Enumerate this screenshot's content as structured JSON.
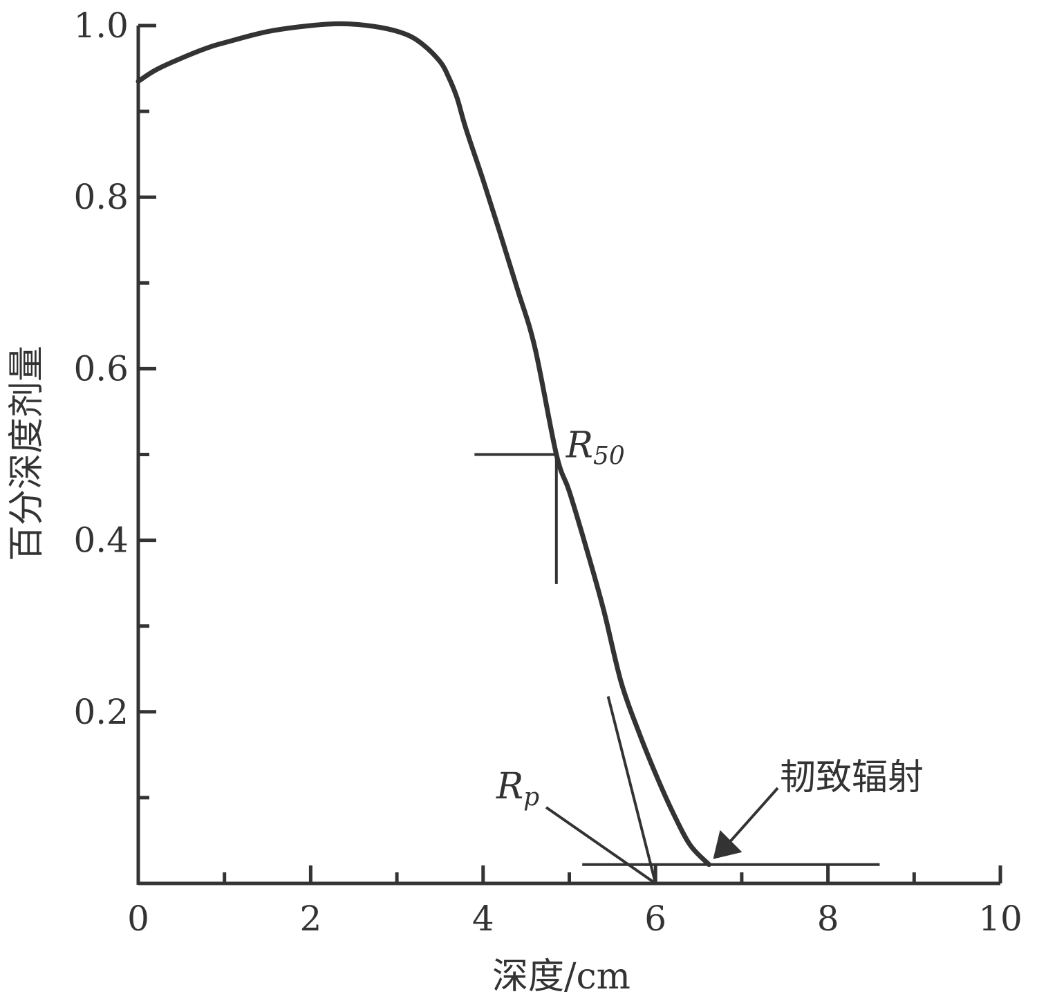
{
  "chart_data": {
    "type": "line",
    "xlabel": "深度/cm",
    "ylabel": "百分深度剂量",
    "xlim": [
      0,
      10
    ],
    "ylim": [
      0,
      1.0
    ],
    "x_ticks": [
      "0",
      "2",
      "4",
      "6",
      "8",
      "10"
    ],
    "y_ticks": [
      "0.2",
      "0.4",
      "0.6",
      "0.8",
      "1.0"
    ],
    "grid": false,
    "series": [
      {
        "x": [
          0,
          0.2,
          0.5,
          0.8,
          1.0,
          1.5,
          2.0,
          2.4,
          2.8,
          3.1,
          3.3,
          3.5,
          3.6,
          3.7,
          3.8,
          4.0,
          4.2,
          4.4,
          4.6,
          4.85,
          5.0,
          5.2,
          5.4,
          5.6,
          5.8,
          6.0,
          6.2,
          6.4,
          6.62
        ],
        "y": [
          0.935,
          0.948,
          0.962,
          0.974,
          0.98,
          0.993,
          1.0,
          1.002,
          0.998,
          0.99,
          0.978,
          0.958,
          0.94,
          0.915,
          0.88,
          0.82,
          0.757,
          0.692,
          0.625,
          0.5,
          0.457,
          0.39,
          0.318,
          0.235,
          0.178,
          0.128,
          0.083,
          0.045,
          0.022
        ]
      }
    ],
    "annotations": [
      {
        "label": "R",
        "subscript": "50",
        "x": 4.85,
        "y": 0.5
      },
      {
        "label": "R",
        "subscript": "p",
        "x": 6.0,
        "y": 0.0
      },
      {
        "label": "韧致辐射",
        "x": 6.62,
        "y": 0.022
      }
    ]
  }
}
